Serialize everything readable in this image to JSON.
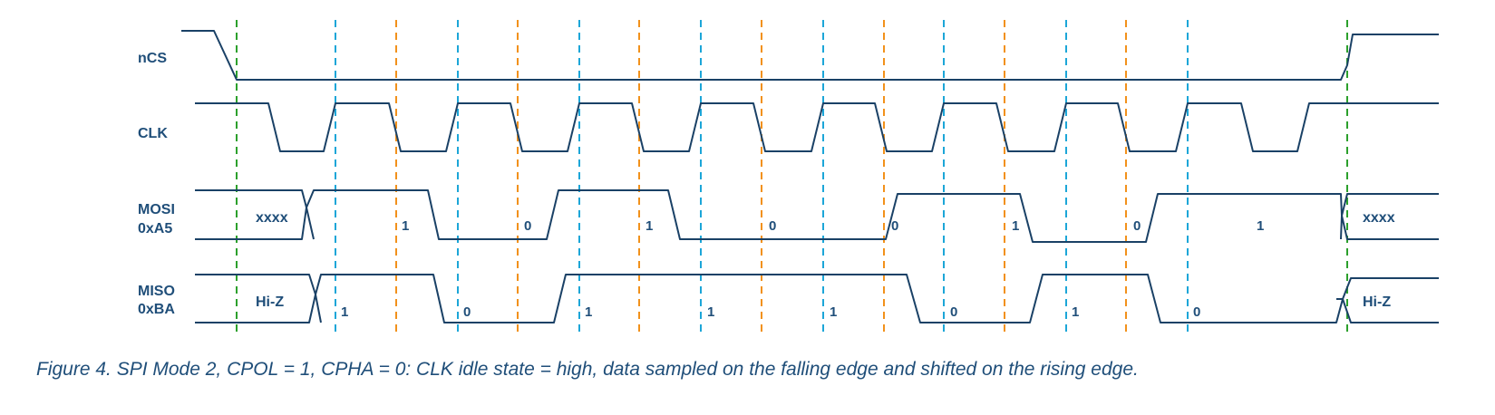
{
  "signals": {
    "ncs": "nCS",
    "clk": "CLK",
    "mosi_name": "MOSI",
    "mosi_value": "0xA5",
    "miso_name": "MISO",
    "miso_value": "0xBA"
  },
  "mosi_bits": [
    "1",
    "0",
    "1",
    "0",
    "0",
    "1",
    "0",
    "1"
  ],
  "miso_bits": [
    "1",
    "0",
    "1",
    "1",
    "1",
    "0",
    "1",
    "0"
  ],
  "states": {
    "mosi_idle_start": "xxxx",
    "mosi_idle_end": "xxxx",
    "miso_idle_start": "Hi-Z",
    "miso_idle_end": "Hi-Z"
  },
  "colors": {
    "wave": "#1a4166",
    "text": "#1f4e79",
    "cs_edge_guide": "#2ca02c",
    "rising_edge_guide": "#1ca6d8",
    "falling_edge_guide": "#f2911b"
  },
  "caption": "Figure 4. SPI Mode 2, CPOL = 1, CPHA = 0: CLK idle state = high, data sampled on the falling edge and shifted on the rising edge."
}
